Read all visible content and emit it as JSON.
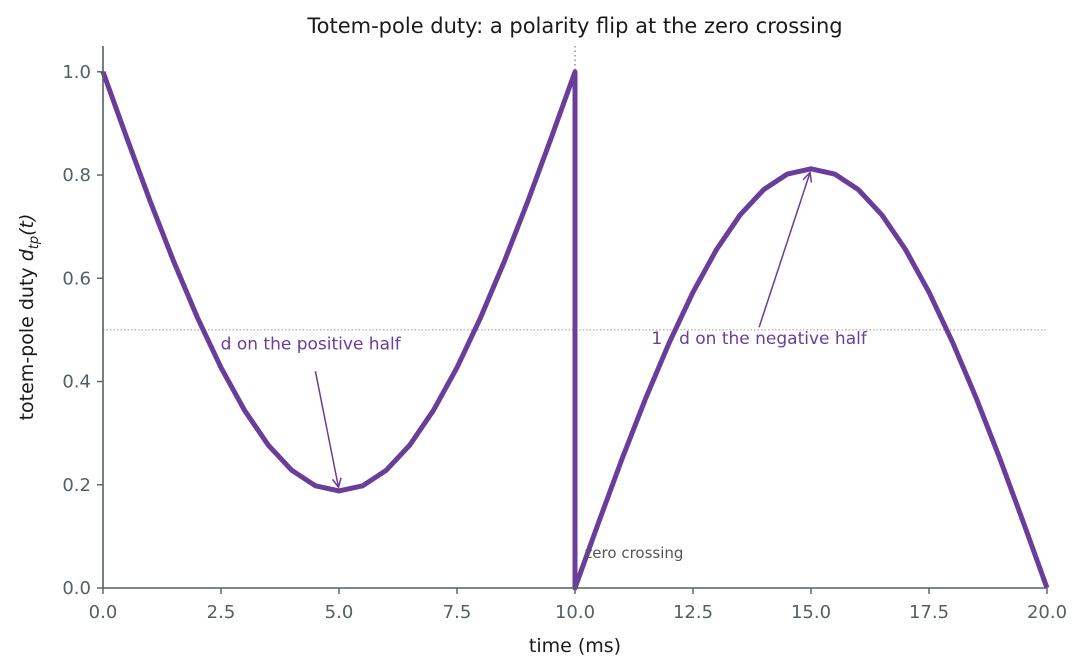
{
  "chart_data": {
    "type": "line",
    "title": "Totem-pole duty: a polarity flip at the zero crossing",
    "xlabel": "time  (ms)",
    "ylabel_main": "totem-pole duty  ",
    "ylabel_symbol": "d",
    "ylabel_subscript": "tp",
    "ylabel_suffix": "(t)",
    "xlim": [
      0,
      20
    ],
    "ylim": [
      0,
      1.05
    ],
    "xticks": [
      "0.0",
      "2.5",
      "5.0",
      "7.5",
      "10.0",
      "12.5",
      "15.0",
      "17.5",
      "20.0"
    ],
    "xtick_values": [
      0,
      2.5,
      5,
      7.5,
      10,
      12.5,
      15,
      17.5,
      20
    ],
    "yticks": [
      "0.0",
      "0.2",
      "0.4",
      "0.6",
      "0.8",
      "1.0"
    ],
    "ytick_values": [
      0,
      0.2,
      0.4,
      0.6,
      0.8,
      1.0
    ],
    "reference_line_y": 0.5,
    "zero_crossing_x": 10,
    "series": [
      {
        "color": "#6a3d9a",
        "x": [
          0,
          0.5,
          1,
          1.5,
          2,
          2.5,
          3,
          3.5,
          4,
          4.5,
          5,
          5.5,
          6,
          6.5,
          7,
          7.5,
          8,
          8.5,
          9,
          9.5,
          10,
          10,
          10.5,
          11,
          11.5,
          12,
          12.5,
          13,
          13.5,
          14,
          14.5,
          15,
          15.5,
          16,
          16.5,
          17,
          17.5,
          18,
          18.5,
          19,
          19.5,
          20
        ],
        "y": [
          1.0,
          0.873,
          0.749,
          0.632,
          0.524,
          0.427,
          0.344,
          0.277,
          0.228,
          0.198,
          0.188,
          0.198,
          0.228,
          0.277,
          0.344,
          0.427,
          0.524,
          0.632,
          0.749,
          0.873,
          1.0,
          0.0,
          0.127,
          0.251,
          0.368,
          0.476,
          0.573,
          0.656,
          0.723,
          0.772,
          0.802,
          0.812,
          0.802,
          0.772,
          0.723,
          0.656,
          0.573,
          0.476,
          0.368,
          0.251,
          0.127,
          0.0
        ]
      }
    ],
    "annotations": [
      {
        "text": "d on the positive half",
        "text_x": 4.4,
        "text_y": 0.462,
        "arrow_from": [
          4.5,
          0.42
        ],
        "arrow_to": [
          4.99,
          0.195
        ]
      },
      {
        "text": "1 - d on the negative half",
        "text_x": 13.9,
        "text_y": 0.473,
        "arrow_from": [
          13.9,
          0.505
        ],
        "arrow_to": [
          14.98,
          0.805
        ]
      },
      {
        "text": "zero crossing",
        "text_x": 10.2,
        "text_y": 0.058
      }
    ]
  }
}
